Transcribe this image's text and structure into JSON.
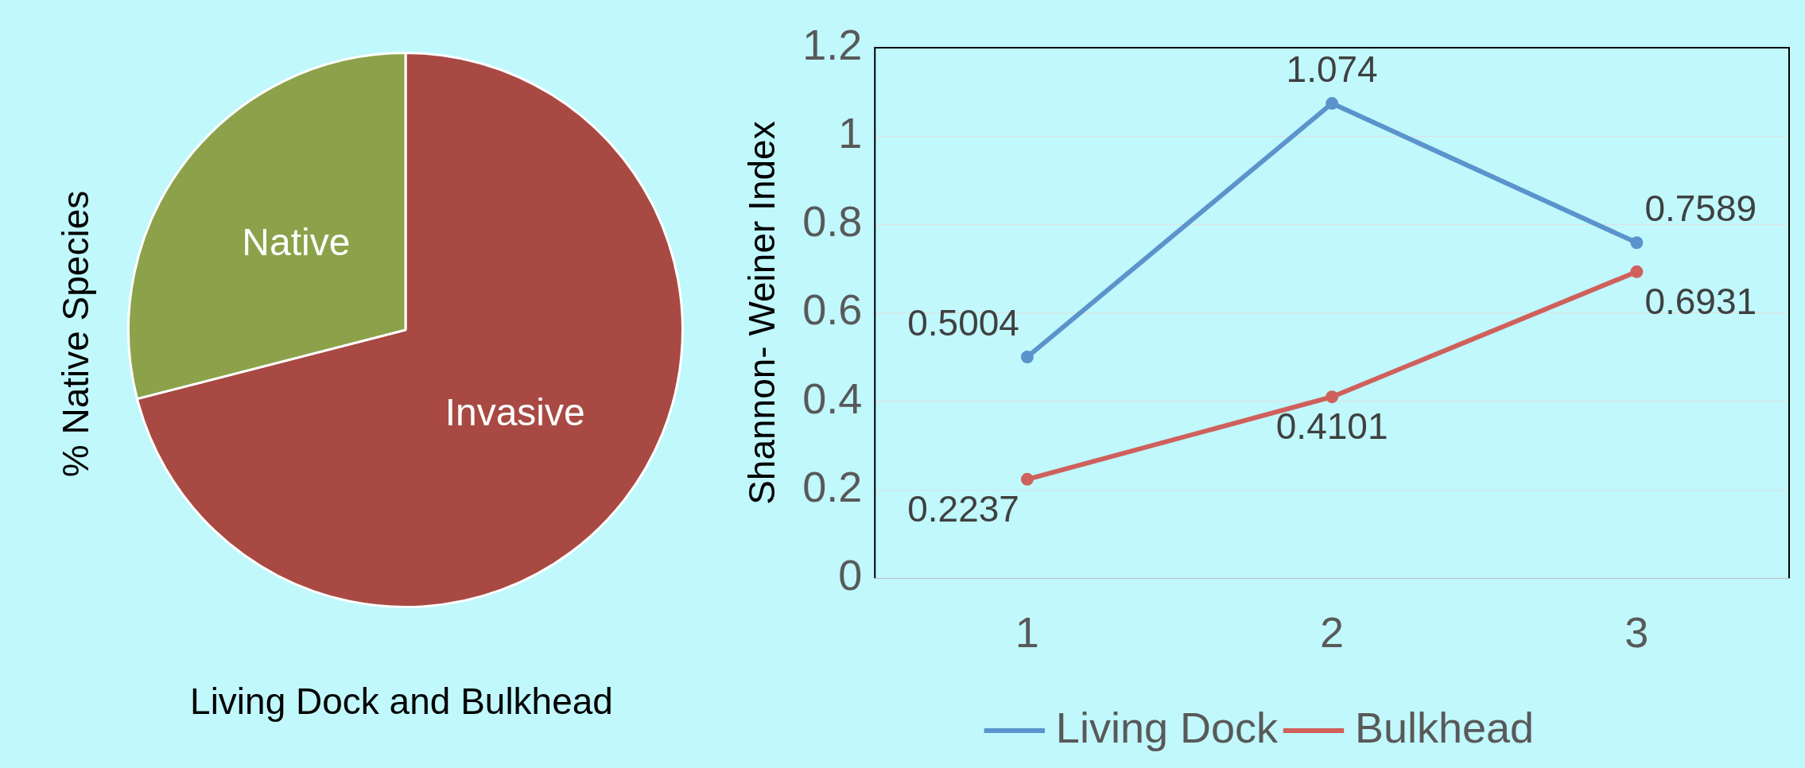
{
  "chart_data": [
    {
      "type": "pie",
      "ylabel": "% Native Species",
      "xlabel": "Living Dock and Bulkhead",
      "categories": [
        "Invasive",
        "Native"
      ],
      "values": [
        71,
        29
      ],
      "colors": [
        "#a84a43",
        "#8ba24a"
      ]
    },
    {
      "type": "line",
      "ylabel": "Shannon- Weiner Index",
      "categories": [
        "1",
        "2",
        "3"
      ],
      "series": [
        {
          "name": "Living Dock",
          "color": "#5b93cc",
          "values": [
            0.5004,
            1.074,
            0.7589
          ]
        },
        {
          "name": "Bulkhead",
          "color": "#d0605b",
          "values": [
            0.2237,
            0.4101,
            0.6931
          ]
        }
      ],
      "ylim": [
        0,
        1.2
      ],
      "yticks": [
        0,
        0.2,
        0.4,
        0.6,
        0.8,
        1,
        1.2
      ],
      "grid": "y",
      "legend": "bottom",
      "marker": "circle",
      "line_style": "solid",
      "data_labels": true
    }
  ]
}
